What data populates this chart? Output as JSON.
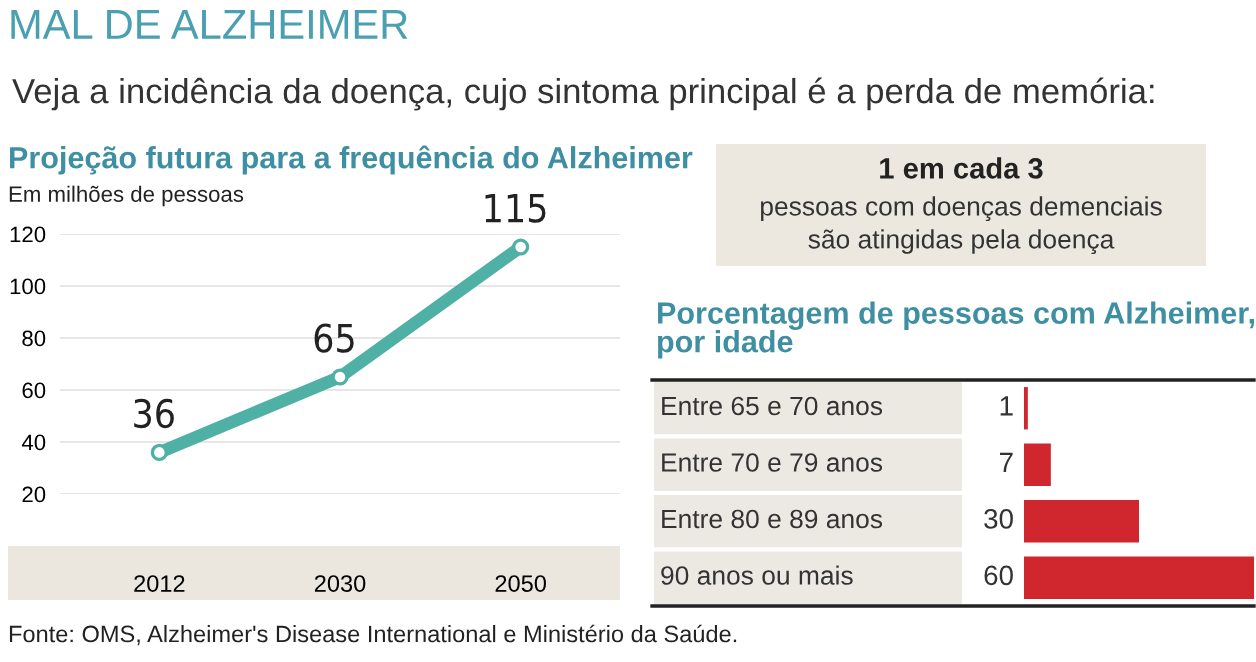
{
  "chart_data": [
    {
      "type": "other",
      "title": "MAL DE ALZHEIMER",
      "subtitle": "Veja a incidência da doença, cujo sintoma principal é a perda de memória:",
      "annotations": [
        "Fonte: OMS, Alzheimer's Disease International e Ministério da Saúde."
      ]
    },
    {
      "type": "line",
      "title": "Projeção futura para a frequência do Alzheimer",
      "ylabel": "Em milhões de pessoas",
      "categories": [
        "2012",
        "2030",
        "2050"
      ],
      "series": [
        {
          "color": "#4fb0a5",
          "values": [
            36,
            65,
            115
          ]
        }
      ],
      "ylim": [
        20,
        120
      ],
      "yticks": [
        20,
        40,
        60,
        80,
        100,
        120
      ],
      "grid": "y",
      "marker": "circle",
      "line_style": "solid",
      "data_labels": true
    },
    {
      "type": "other",
      "title": "1 em cada 3",
      "annotations": [
        "pessoas com doenças demenciais",
        "são atingidas pela doença"
      ]
    },
    {
      "type": "bar",
      "orientation": "horizontal",
      "title": "Porcentagem de pessoas com Alzheimer,\npor idade",
      "categories": [
        "Entre 65 e 70 anos",
        "Entre 70 e 79 anos",
        "Entre 80 e 89 anos",
        "90 anos ou mais"
      ],
      "values": [
        1,
        7,
        30,
        60
      ],
      "color": "#d0262e",
      "data_labels": true
    }
  ]
}
